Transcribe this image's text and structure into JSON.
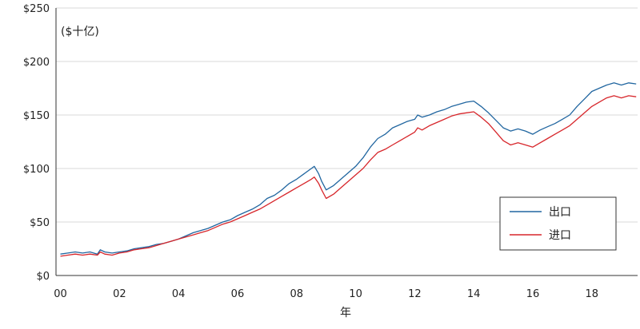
{
  "chart_data": {
    "type": "line",
    "title": "",
    "unit_label": "($十亿)",
    "xlabel": "年",
    "ylabel": "",
    "xlim": [
      1999.85,
      2019.55
    ],
    "ylim": [
      0,
      250
    ],
    "y_ticks": [
      0,
      50,
      100,
      150,
      200,
      250
    ],
    "y_tick_labels": [
      "$0",
      "$50",
      "$100",
      "$150",
      "$200",
      "$250"
    ],
    "x_ticks": [
      2000,
      2002,
      2004,
      2006,
      2008,
      2010,
      2012,
      2014,
      2016,
      2018
    ],
    "x_tick_labels": [
      "00",
      "02",
      "04",
      "06",
      "08",
      "10",
      "12",
      "14",
      "16",
      "18"
    ],
    "grid": "horizontal",
    "legend_position": "bottom-right",
    "series": [
      {
        "name": "出口",
        "color": "#2166a0",
        "points": [
          [
            2000.0,
            20
          ],
          [
            2000.25,
            21
          ],
          [
            2000.5,
            22
          ],
          [
            2000.75,
            21
          ],
          [
            2001.0,
            22
          ],
          [
            2001.25,
            20
          ],
          [
            2001.35,
            24
          ],
          [
            2001.5,
            22
          ],
          [
            2001.75,
            21
          ],
          [
            2002.0,
            22
          ],
          [
            2002.25,
            23
          ],
          [
            2002.5,
            25
          ],
          [
            2002.75,
            26
          ],
          [
            2003.0,
            27
          ],
          [
            2003.25,
            29
          ],
          [
            2003.5,
            30
          ],
          [
            2003.75,
            32
          ],
          [
            2004.0,
            34
          ],
          [
            2004.25,
            37
          ],
          [
            2004.5,
            40
          ],
          [
            2004.75,
            42
          ],
          [
            2005.0,
            44
          ],
          [
            2005.25,
            47
          ],
          [
            2005.5,
            50
          ],
          [
            2005.75,
            52
          ],
          [
            2006.0,
            56
          ],
          [
            2006.25,
            59
          ],
          [
            2006.5,
            62
          ],
          [
            2006.75,
            66
          ],
          [
            2007.0,
            72
          ],
          [
            2007.25,
            75
          ],
          [
            2007.5,
            80
          ],
          [
            2007.75,
            86
          ],
          [
            2008.0,
            90
          ],
          [
            2008.25,
            95
          ],
          [
            2008.5,
            100
          ],
          [
            2008.6,
            102
          ],
          [
            2008.75,
            95
          ],
          [
            2008.85,
            88
          ],
          [
            2009.0,
            80
          ],
          [
            2009.25,
            84
          ],
          [
            2009.5,
            90
          ],
          [
            2009.75,
            96
          ],
          [
            2010.0,
            102
          ],
          [
            2010.25,
            110
          ],
          [
            2010.5,
            120
          ],
          [
            2010.75,
            128
          ],
          [
            2011.0,
            132
          ],
          [
            2011.25,
            138
          ],
          [
            2011.5,
            141
          ],
          [
            2011.75,
            144
          ],
          [
            2012.0,
            146
          ],
          [
            2012.1,
            150
          ],
          [
            2012.25,
            148
          ],
          [
            2012.5,
            150
          ],
          [
            2012.75,
            153
          ],
          [
            2013.0,
            155
          ],
          [
            2013.25,
            158
          ],
          [
            2013.5,
            160
          ],
          [
            2013.75,
            162
          ],
          [
            2014.0,
            163
          ],
          [
            2014.25,
            158
          ],
          [
            2014.5,
            152
          ],
          [
            2014.75,
            145
          ],
          [
            2015.0,
            138
          ],
          [
            2015.25,
            135
          ],
          [
            2015.5,
            137
          ],
          [
            2015.75,
            135
          ],
          [
            2016.0,
            132
          ],
          [
            2016.25,
            136
          ],
          [
            2016.5,
            139
          ],
          [
            2016.75,
            142
          ],
          [
            2017.0,
            146
          ],
          [
            2017.25,
            150
          ],
          [
            2017.5,
            158
          ],
          [
            2017.75,
            165
          ],
          [
            2018.0,
            172
          ],
          [
            2018.25,
            175
          ],
          [
            2018.5,
            178
          ],
          [
            2018.75,
            180
          ],
          [
            2019.0,
            178
          ],
          [
            2019.25,
            180
          ],
          [
            2019.5,
            179
          ]
        ]
      },
      {
        "name": "进口",
        "color": "#d7262b",
        "points": [
          [
            2000.0,
            18
          ],
          [
            2000.25,
            19
          ],
          [
            2000.5,
            20
          ],
          [
            2000.75,
            19
          ],
          [
            2001.0,
            20
          ],
          [
            2001.25,
            19
          ],
          [
            2001.35,
            22
          ],
          [
            2001.5,
            20
          ],
          [
            2001.75,
            19
          ],
          [
            2002.0,
            21
          ],
          [
            2002.25,
            22
          ],
          [
            2002.5,
            24
          ],
          [
            2002.75,
            25
          ],
          [
            2003.0,
            26
          ],
          [
            2003.25,
            28
          ],
          [
            2003.5,
            30
          ],
          [
            2003.75,
            32
          ],
          [
            2004.0,
            34
          ],
          [
            2004.25,
            36
          ],
          [
            2004.5,
            38
          ],
          [
            2004.75,
            40
          ],
          [
            2005.0,
            42
          ],
          [
            2005.25,
            45
          ],
          [
            2005.5,
            48
          ],
          [
            2005.75,
            50
          ],
          [
            2006.0,
            53
          ],
          [
            2006.25,
            56
          ],
          [
            2006.5,
            59
          ],
          [
            2006.75,
            62
          ],
          [
            2007.0,
            66
          ],
          [
            2007.25,
            70
          ],
          [
            2007.5,
            74
          ],
          [
            2007.75,
            78
          ],
          [
            2008.0,
            82
          ],
          [
            2008.25,
            86
          ],
          [
            2008.5,
            90
          ],
          [
            2008.6,
            92
          ],
          [
            2008.75,
            86
          ],
          [
            2008.85,
            80
          ],
          [
            2009.0,
            72
          ],
          [
            2009.25,
            76
          ],
          [
            2009.5,
            82
          ],
          [
            2009.75,
            88
          ],
          [
            2010.0,
            94
          ],
          [
            2010.25,
            100
          ],
          [
            2010.5,
            108
          ],
          [
            2010.75,
            115
          ],
          [
            2011.0,
            118
          ],
          [
            2011.25,
            122
          ],
          [
            2011.5,
            126
          ],
          [
            2011.75,
            130
          ],
          [
            2012.0,
            134
          ],
          [
            2012.1,
            138
          ],
          [
            2012.25,
            136
          ],
          [
            2012.5,
            140
          ],
          [
            2012.75,
            143
          ],
          [
            2013.0,
            146
          ],
          [
            2013.25,
            149
          ],
          [
            2013.5,
            151
          ],
          [
            2013.75,
            152
          ],
          [
            2014.0,
            153
          ],
          [
            2014.25,
            148
          ],
          [
            2014.5,
            142
          ],
          [
            2014.75,
            134
          ],
          [
            2015.0,
            126
          ],
          [
            2015.25,
            122
          ],
          [
            2015.5,
            124
          ],
          [
            2015.75,
            122
          ],
          [
            2016.0,
            120
          ],
          [
            2016.25,
            124
          ],
          [
            2016.5,
            128
          ],
          [
            2016.75,
            132
          ],
          [
            2017.0,
            136
          ],
          [
            2017.25,
            140
          ],
          [
            2017.5,
            146
          ],
          [
            2017.75,
            152
          ],
          [
            2018.0,
            158
          ],
          [
            2018.25,
            162
          ],
          [
            2018.5,
            166
          ],
          [
            2018.75,
            168
          ],
          [
            2019.0,
            166
          ],
          [
            2019.25,
            168
          ],
          [
            2019.5,
            167
          ]
        ]
      }
    ]
  }
}
